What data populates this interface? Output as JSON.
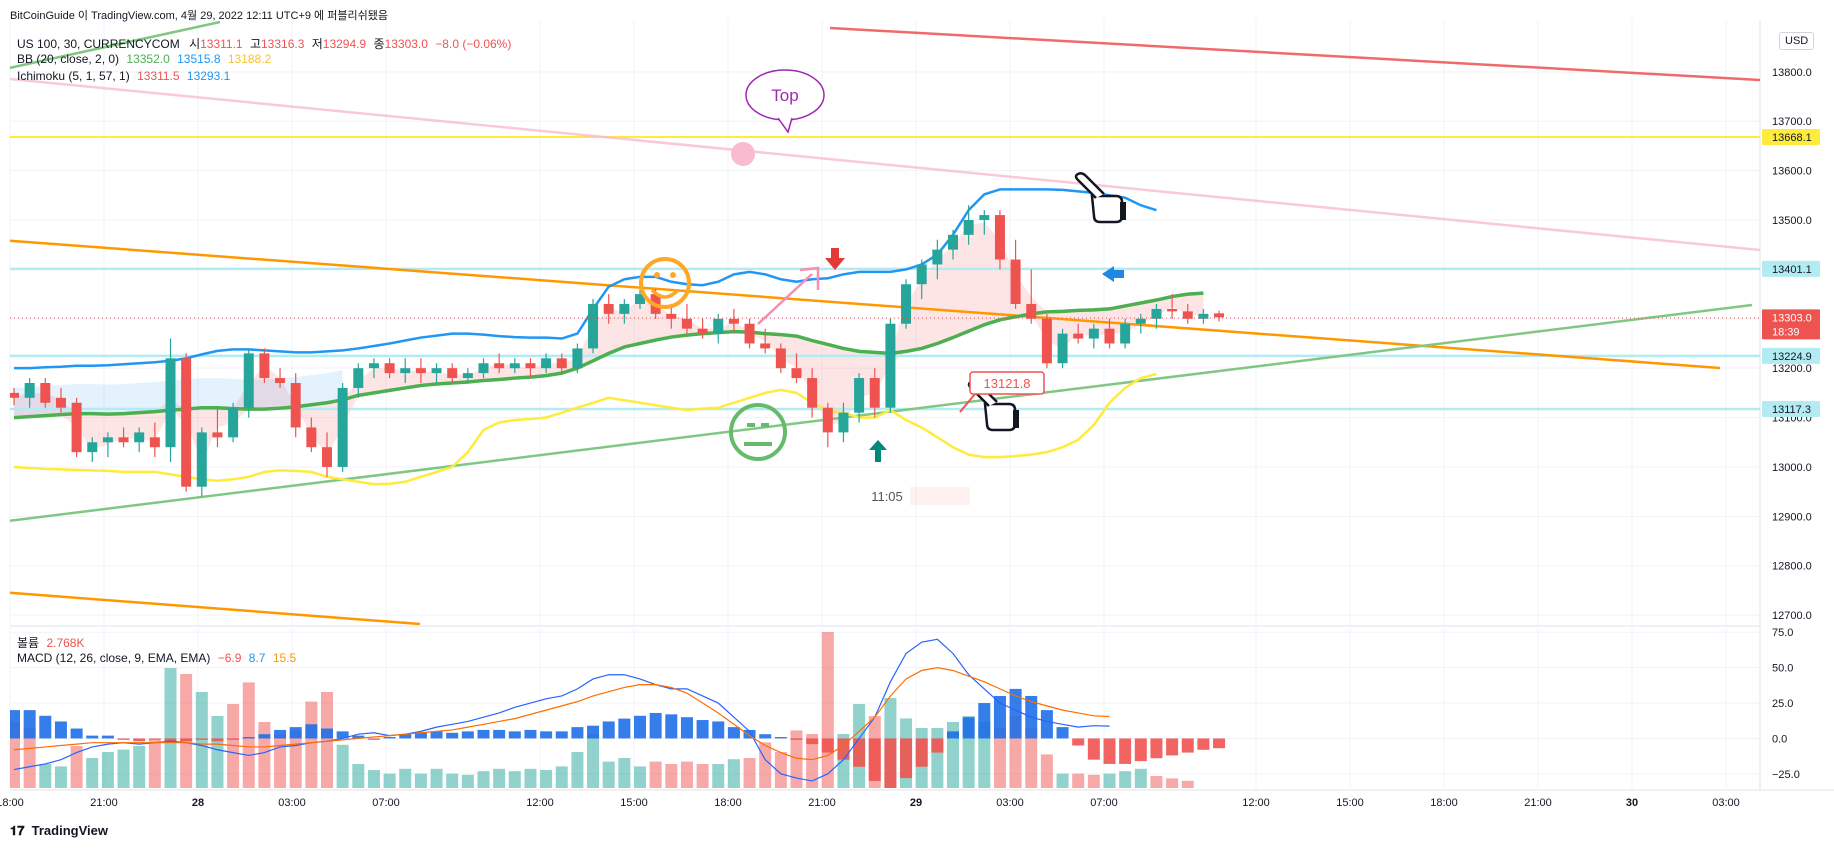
{
  "header": {
    "attribution": "BitCoinGuide 이 TradingView.com, 4월 29, 2022 12:11 UTC+9 에 퍼블리쉬됐음",
    "symbol": "US 100, 30, CURRENCYCOM",
    "ohlc": {
      "o_label": "시",
      "o": "13311.1",
      "h_label": "고",
      "h": "13316.3",
      "l_label": "저",
      "l": "13294.9",
      "c_label": "종",
      "c": "13303.0",
      "change": "−8.0 (−0.06%)"
    },
    "bb_label": "BB (20, close, 2, 0)",
    "bb_values": [
      "13352.0",
      "13515.8",
      "13188.2"
    ],
    "ichimoku_label": "Ichimoku (5, 1, 57, 1)",
    "ichimoku_values": [
      "13311.5",
      "13293.1"
    ]
  },
  "currency_button": "USD",
  "volume_legend": {
    "label": "볼륨",
    "value": "2.768K"
  },
  "macd_legend": {
    "label": "MACD (12, 26, close, 9, EMA, EMA)",
    "values": [
      "−6.9",
      "8.7",
      "15.5"
    ]
  },
  "footer": {
    "logo_text": "TradingView"
  },
  "annotations": {
    "top_bubble": "Top",
    "price_callout": "13121.8",
    "time_marker": "11:05"
  },
  "colors": {
    "up": "#26a69a",
    "down": "#ef5350",
    "bb_mid": "#4caf50",
    "bb_upper": "#2196f3",
    "bb_lower": "#ffeb3b",
    "trend_orange": "#ff9800",
    "trend_green": "#81c784",
    "hline_yellow": "#ffeb3b",
    "hline_cyan": "#b2ebf2"
  },
  "chart_data": {
    "type": "candlestick",
    "interval": "30",
    "price_axis": {
      "ticks": [
        13800,
        13700,
        13600,
        13500,
        13400,
        13300,
        13200,
        13100,
        13000,
        12900,
        12800,
        12700
      ],
      "tick_labels": [
        "13800.0",
        "13700.0",
        "13600.0",
        "13500.0",
        "13400.0",
        "13300.0",
        "13200.0",
        "13100.0",
        "13000.0",
        "12900.0",
        "12800.0",
        "12700.0"
      ],
      "ylim": [
        12680,
        13905
      ]
    },
    "price_labels": [
      {
        "value": 13668.1,
        "label": "13668.1",
        "color": "#ffeb3b",
        "text_color": "#131722"
      },
      {
        "value": 13401.1,
        "label": "13401.1",
        "color": "#b2ebf2",
        "text_color": "#131722"
      },
      {
        "value": 13303.0,
        "label": "13303.0",
        "sub": "18:39",
        "color": "#ef5350",
        "text_color": "#ffffff"
      },
      {
        "value": 13224.9,
        "label": "13224.9",
        "color": "#b2ebf2",
        "text_color": "#131722"
      },
      {
        "value": 13117.3,
        "label": "13117.3",
        "color": "#b2ebf2",
        "text_color": "#131722"
      }
    ],
    "time_axis": [
      "18:00",
      "21:00",
      "28",
      "03:00",
      "07:00",
      "12:00",
      "15:00",
      "18:00",
      "21:00",
      "29",
      "03:00",
      "07:00",
      "12:00",
      "15:00",
      "18:00",
      "21:00",
      "30",
      "03:00"
    ],
    "horizontal_lines": [
      13668.1,
      13401.1,
      13224.9,
      13117.3
    ],
    "candles": [
      [
        13150,
        13160,
        13125,
        13140
      ],
      [
        13140,
        13180,
        13120,
        13170
      ],
      [
        13170,
        13180,
        13120,
        13130
      ],
      [
        13140,
        13160,
        13110,
        13120
      ],
      [
        13130,
        13140,
        13020,
        13030
      ],
      [
        13030,
        13060,
        13010,
        13050
      ],
      [
        13050,
        13070,
        13020,
        13060
      ],
      [
        13060,
        13080,
        13040,
        13050
      ],
      [
        13050,
        13080,
        13030,
        13070
      ],
      [
        13060,
        13090,
        13020,
        13040
      ],
      [
        13040,
        13260,
        13010,
        13220
      ],
      [
        13220,
        13230,
        12950,
        12960
      ],
      [
        12960,
        13080,
        12940,
        13070
      ],
      [
        13070,
        13120,
        13040,
        13060
      ],
      [
        13060,
        13130,
        13050,
        13120
      ],
      [
        13120,
        13240,
        13100,
        13230
      ],
      [
        13230,
        13240,
        13170,
        13180
      ],
      [
        13180,
        13200,
        13160,
        13170
      ],
      [
        13170,
        13190,
        13060,
        13080
      ],
      [
        13080,
        13100,
        13030,
        13040
      ],
      [
        13040,
        13070,
        12980,
        13000
      ],
      [
        13000,
        13170,
        12990,
        13160
      ],
      [
        13160,
        13210,
        13140,
        13200
      ],
      [
        13200,
        13220,
        13180,
        13210
      ],
      [
        13210,
        13220,
        13180,
        13190
      ],
      [
        13190,
        13220,
        13170,
        13200
      ],
      [
        13200,
        13220,
        13170,
        13190
      ],
      [
        13190,
        13210,
        13170,
        13200
      ],
      [
        13200,
        13210,
        13170,
        13180
      ],
      [
        13180,
        13200,
        13170,
        13190
      ],
      [
        13190,
        13220,
        13180,
        13210
      ],
      [
        13210,
        13230,
        13190,
        13200
      ],
      [
        13200,
        13220,
        13190,
        13210
      ],
      [
        13210,
        13220,
        13180,
        13200
      ],
      [
        13200,
        13230,
        13190,
        13220
      ],
      [
        13220,
        13230,
        13190,
        13200
      ],
      [
        13200,
        13250,
        13190,
        13240
      ],
      [
        13240,
        13340,
        13230,
        13330
      ],
      [
        13330,
        13350,
        13290,
        13310
      ],
      [
        13310,
        13340,
        13290,
        13330
      ],
      [
        13330,
        13360,
        13320,
        13350
      ],
      [
        13350,
        13360,
        13300,
        13310
      ],
      [
        13310,
        13330,
        13280,
        13300
      ],
      [
        13300,
        13330,
        13270,
        13280
      ],
      [
        13280,
        13300,
        13260,
        13270
      ],
      [
        13270,
        13310,
        13250,
        13300
      ],
      [
        13300,
        13320,
        13270,
        13290
      ],
      [
        13290,
        13300,
        13240,
        13250
      ],
      [
        13250,
        13280,
        13230,
        13240
      ],
      [
        13240,
        13250,
        13190,
        13200
      ],
      [
        13200,
        13230,
        13170,
        13180
      ],
      [
        13180,
        13200,
        13100,
        13120
      ],
      [
        13120,
        13130,
        13040,
        13070
      ],
      [
        13070,
        13130,
        13050,
        13110
      ],
      [
        13110,
        13190,
        13090,
        13180
      ],
      [
        13180,
        13200,
        13100,
        13120
      ],
      [
        13120,
        13300,
        13110,
        13290
      ],
      [
        13290,
        13380,
        13280,
        13370
      ],
      [
        13370,
        13420,
        13340,
        13410
      ],
      [
        13410,
        13460,
        13380,
        13440
      ],
      [
        13440,
        13480,
        13420,
        13470
      ],
      [
        13470,
        13530,
        13450,
        13500
      ],
      [
        13500,
        13520,
        13470,
        13510
      ],
      [
        13510,
        13520,
        13400,
        13420
      ],
      [
        13420,
        13460,
        13320,
        13330
      ],
      [
        13330,
        13400,
        13290,
        13300
      ],
      [
        13300,
        13310,
        13200,
        13210
      ],
      [
        13210,
        13280,
        13200,
        13270
      ],
      [
        13270,
        13290,
        13250,
        13260
      ],
      [
        13260,
        13290,
        13240,
        13280
      ],
      [
        13280,
        13300,
        13240,
        13250
      ],
      [
        13250,
        13300,
        13240,
        13290
      ],
      [
        13290,
        13310,
        13270,
        13300
      ],
      [
        13300,
        13330,
        13280,
        13320
      ],
      [
        13320,
        13350,
        13300,
        13315
      ],
      [
        13315,
        13330,
        13290,
        13300
      ],
      [
        13300,
        13320,
        13290,
        13310
      ],
      [
        13311.1,
        13316.3,
        13294.9,
        13303.0
      ]
    ],
    "bb_upper": [
      13200,
      13200,
      13202,
      13203,
      13205,
      13205,
      13206,
      13208,
      13210,
      13212,
      13215,
      13220,
      13228,
      13235,
      13238,
      13238,
      13236,
      13234,
      13232,
      13232,
      13234,
      13236,
      13240,
      13245,
      13250,
      13256,
      13262,
      13266,
      13270,
      13270,
      13268,
      13265,
      13263,
      13262,
      13262,
      13260,
      13270,
      13320,
      13365,
      13380,
      13385,
      13385,
      13375,
      13370,
      13368,
      13375,
      13390,
      13395,
      13390,
      13380,
      13375,
      13380,
      13382,
      13390,
      13395,
      13395,
      13395,
      13400,
      13410,
      13430,
      13470,
      13520,
      13552,
      13562,
      13562,
      13562,
      13562,
      13561,
      13558,
      13555,
      13550,
      13545,
      13530,
      13520
    ],
    "bb_mid": [
      13100,
      13102,
      13104,
      13106,
      13108,
      13108,
      13107,
      13108,
      13110,
      13112,
      13115,
      13117,
      13120,
      13120,
      13118,
      13117,
      13117,
      13119,
      13122,
      13126,
      13130,
      13136,
      13145,
      13150,
      13155,
      13160,
      13165,
      13168,
      13170,
      13172,
      13175,
      13177,
      13180,
      13182,
      13185,
      13190,
      13200,
      13215,
      13230,
      13243,
      13250,
      13257,
      13263,
      13267,
      13270,
      13272,
      13274,
      13273,
      13270,
      13268,
      13265,
      13256,
      13248,
      13240,
      13234,
      13232,
      13230,
      13234,
      13240,
      13250,
      13262,
      13275,
      13288,
      13298,
      13304,
      13310,
      13314,
      13315,
      13317,
      13318,
      13320,
      13326,
      13332,
      13338,
      13345,
      13350,
      13352
    ],
    "bb_lower": [
      13000,
      12998,
      12996,
      12995,
      12994,
      12993,
      12992,
      12990,
      12990,
      12990,
      12985,
      12980,
      12975,
      12972,
      12975,
      12980,
      12990,
      12993,
      12992,
      12990,
      12980,
      12975,
      12970,
      12965,
      12966,
      12970,
      12980,
      12990,
      13000,
      13030,
      13075,
      13090,
      13095,
      13097,
      13100,
      13110,
      13120,
      13130,
      13140,
      13135,
      13130,
      13125,
      13120,
      13115,
      13118,
      13120,
      13130,
      13140,
      13150,
      13156,
      13150,
      13130,
      13114,
      13110,
      13100,
      13100,
      13115,
      13095,
      13080,
      13060,
      13040,
      13025,
      13020,
      13020,
      13022,
      13025,
      13030,
      13040,
      13055,
      13085,
      13130,
      13160,
      13180,
      13188.2
    ]
  },
  "volume_data": [
    [
      "d",
      55
    ],
    [
      "d",
      50
    ],
    [
      "u",
      20
    ],
    [
      "u",
      18
    ],
    [
      "d",
      35
    ],
    [
      "u",
      25
    ],
    [
      "u",
      30
    ],
    [
      "u",
      32
    ],
    [
      "u",
      35
    ],
    [
      "d",
      40
    ],
    [
      "u",
      100
    ],
    [
      "d",
      95
    ],
    [
      "u",
      80
    ],
    [
      "u",
      60
    ],
    [
      "d",
      70
    ],
    [
      "d",
      88
    ],
    [
      "d",
      55
    ],
    [
      "d",
      45
    ],
    [
      "d",
      48
    ],
    [
      "d",
      72
    ],
    [
      "d",
      80
    ],
    [
      "u",
      36
    ],
    [
      "u",
      20
    ],
    [
      "u",
      15
    ],
    [
      "u",
      12
    ],
    [
      "u",
      16
    ],
    [
      "u",
      12
    ],
    [
      "u",
      16
    ],
    [
      "u",
      12
    ],
    [
      "u",
      11
    ],
    [
      "u",
      14
    ],
    [
      "u",
      16
    ],
    [
      "u",
      14
    ],
    [
      "u",
      16
    ],
    [
      "u",
      15
    ],
    [
      "u",
      18
    ],
    [
      "u",
      30
    ],
    [
      "u",
      45
    ],
    [
      "u",
      22
    ],
    [
      "u",
      25
    ],
    [
      "u",
      18
    ],
    [
      "d",
      22
    ],
    [
      "d",
      20
    ],
    [
      "d",
      22
    ],
    [
      "d",
      20
    ],
    [
      "u",
      20
    ],
    [
      "u",
      24
    ],
    [
      "d",
      25
    ],
    [
      "d",
      38
    ],
    [
      "d",
      30
    ],
    [
      "d",
      48
    ],
    [
      "d",
      45
    ],
    [
      "d",
      130
    ],
    [
      "u",
      45
    ],
    [
      "u",
      70
    ],
    [
      "d",
      60
    ],
    [
      "u",
      75
    ],
    [
      "u",
      58
    ],
    [
      "u",
      50
    ],
    [
      "u",
      50
    ],
    [
      "u",
      55
    ],
    [
      "u",
      60
    ],
    [
      "u",
      55
    ],
    [
      "d",
      50
    ],
    [
      "d",
      60
    ],
    [
      "d",
      50
    ],
    [
      "d",
      28
    ],
    [
      "u",
      12
    ],
    [
      "d",
      12
    ],
    [
      "d",
      11
    ],
    [
      "u",
      12
    ],
    [
      "u",
      14
    ],
    [
      "u",
      16
    ],
    [
      "d",
      10
    ],
    [
      "d",
      8
    ],
    [
      "d",
      6
    ]
  ],
  "macd_hist": [
    20,
    20,
    16,
    12,
    7,
    2,
    2,
    -1,
    -2,
    -1,
    -2,
    -2,
    -1,
    -2,
    -1,
    1,
    3,
    6,
    8,
    10,
    7,
    5,
    2,
    -1,
    1,
    3,
    4,
    5,
    4,
    5,
    6,
    6,
    5,
    6,
    5,
    5,
    8,
    9,
    12,
    14,
    16,
    18,
    17,
    15,
    13,
    12,
    8,
    6,
    3,
    1,
    -1,
    -4,
    -10,
    -15,
    -20,
    -30,
    -35,
    -28,
    -20,
    -10,
    5,
    15,
    25,
    30,
    35,
    30,
    20,
    8,
    -5,
    -15,
    -18,
    -18,
    -16,
    -14,
    -12,
    -10,
    -8,
    -6.9
  ],
  "macd_line": [
    -22,
    -20,
    -18,
    -15,
    -10,
    -6,
    -4,
    -3,
    -4,
    -3,
    -2,
    -3,
    -5,
    -8,
    -10,
    -12,
    -10,
    -6,
    -5,
    -3,
    -2,
    0,
    3,
    4,
    2,
    3,
    5,
    8,
    10,
    12,
    15,
    18,
    22,
    25,
    28,
    30,
    35,
    42,
    45,
    45,
    42,
    38,
    35,
    35,
    30,
    25,
    15,
    5,
    -15,
    -25,
    -28,
    -30,
    -25,
    -15,
    0,
    15,
    40,
    60,
    68,
    70,
    60,
    45,
    35,
    25,
    20,
    15,
    12,
    10,
    8,
    9,
    8.7
  ],
  "macd_signal": [
    -8,
    -7,
    -6,
    -5,
    -4,
    -3,
    -3,
    -3,
    -3,
    -3,
    -3,
    -3,
    -4,
    -4,
    -5,
    -6,
    -6,
    -5,
    -4,
    -3,
    -2,
    -1,
    0,
    1,
    2,
    3,
    4,
    5,
    6,
    8,
    10,
    12,
    14,
    17,
    20,
    23,
    26,
    30,
    33,
    36,
    38,
    38,
    36,
    32,
    25,
    18,
    10,
    2,
    -5,
    -10,
    -14,
    -15,
    -12,
    -5,
    5,
    15,
    30,
    42,
    48,
    50,
    48,
    44,
    40,
    35,
    30,
    26,
    23,
    20,
    18,
    16,
    15.5
  ],
  "macd_axis": {
    "ticks": [
      75,
      50,
      25,
      0,
      -25
    ],
    "tick_labels": [
      "75.0",
      "50.0",
      "25.0",
      "0.0",
      "−25.0"
    ],
    "ylim": [
      -35,
      78
    ]
  }
}
